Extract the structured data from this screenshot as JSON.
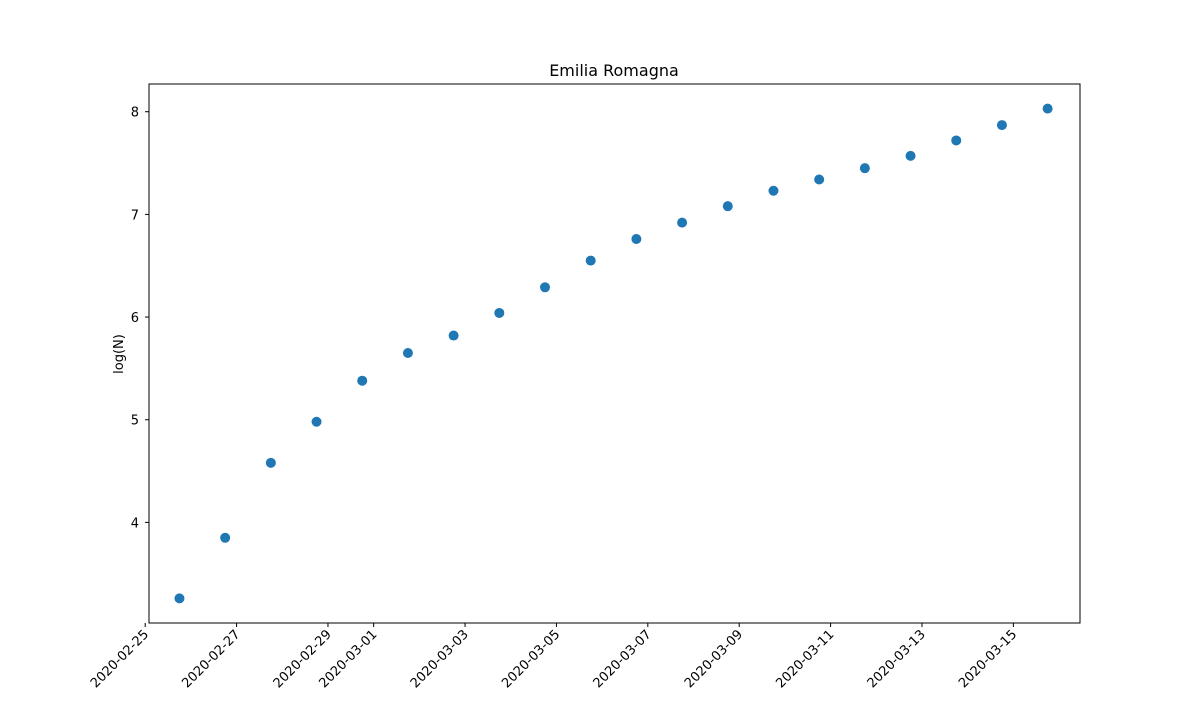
{
  "chart_data": {
    "type": "scatter",
    "title": "Emilia Romagna",
    "xlabel": "",
    "ylabel": "log(N)",
    "x": [
      "2020-02-25",
      "2020-02-26",
      "2020-02-27",
      "2020-02-28",
      "2020-02-29",
      "2020-03-01",
      "2020-03-02",
      "2020-03-03",
      "2020-03-04",
      "2020-03-05",
      "2020-03-06",
      "2020-03-07",
      "2020-03-08",
      "2020-03-09",
      "2020-03-10",
      "2020-03-11",
      "2020-03-12",
      "2020-03-13",
      "2020-03-14",
      "2020-03-15",
      "2020-03-16"
    ],
    "series": [
      {
        "values": [
          3.26,
          3.85,
          4.58,
          4.98,
          5.38,
          5.65,
          5.82,
          6.04,
          6.29,
          6.55,
          6.76,
          6.92,
          7.08,
          7.23,
          7.34,
          7.45,
          7.57,
          7.72,
          7.87,
          8.03
        ]
      }
    ],
    "x_sample_dates": [
      "2020-02-25T18:00",
      "2020-02-26T18:00",
      "2020-02-27T18:00",
      "2020-02-28T18:00",
      "2020-02-29T18:00",
      "2020-03-01T18:00",
      "2020-03-02T18:00",
      "2020-03-03T18:00",
      "2020-03-04T18:00",
      "2020-03-05T18:00",
      "2020-03-06T18:00",
      "2020-03-07T18:00",
      "2020-03-08T18:00",
      "2020-03-09T18:00",
      "2020-03-10T18:00",
      "2020-03-11T18:00",
      "2020-03-12T18:00",
      "2020-03-13T18:00",
      "2020-03-14T18:00",
      "2020-03-15T18:00"
    ],
    "x_ticks": [
      "2020-02-25",
      "2020-02-27",
      "2020-02-29",
      "2020-03-01",
      "2020-03-03",
      "2020-03-05",
      "2020-03-07",
      "2020-03-09",
      "2020-03-11",
      "2020-03-13",
      "2020-03-15"
    ],
    "y_ticks": [
      4,
      5,
      6,
      7,
      8
    ],
    "xlim": [
      "2020-02-25T02:00",
      "2020-03-16T11:00"
    ],
    "ylim": [
      3.02,
      8.27
    ],
    "grid": false,
    "legend": "none",
    "colors": {
      "points": "#1f77b4",
      "axes": "#000000",
      "background": "#ffffff"
    }
  }
}
